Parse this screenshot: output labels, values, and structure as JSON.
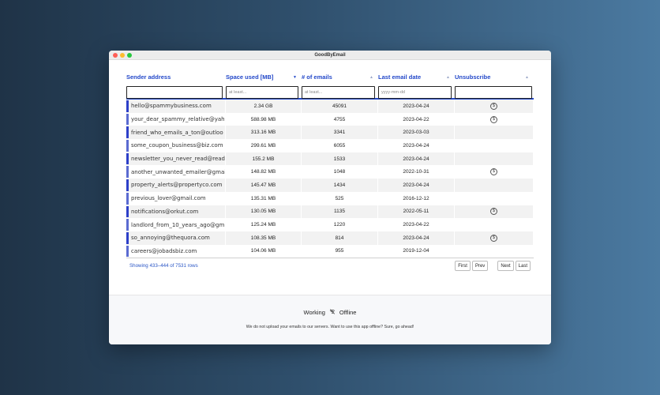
{
  "window": {
    "title": "GoodByEmail"
  },
  "columns": {
    "sender": "Sender address",
    "space": "Space used [MB]",
    "count": "# of emails",
    "date": "Last email date",
    "unsub": "Unsubscribe"
  },
  "sort": {
    "sender": "",
    "space": "▼",
    "count": "▲",
    "date": "▲",
    "unsub": "▲"
  },
  "filters": {
    "space_placeholder": "at least...",
    "count_placeholder": "at least...",
    "date_placeholder": "yyyy-mm-dd"
  },
  "rows": [
    {
      "sender": "hello@spammybusiness.com",
      "space": "2.34 GB",
      "count": "45091",
      "date": "2023-04-24",
      "unsub": true,
      "bar": "#2d3fc9"
    },
    {
      "sender": "your_dear_spammy_relative@yah",
      "space": "588.98 MB",
      "count": "4755",
      "date": "2023-04-22",
      "unsub": true,
      "bar": "#5a6bd1"
    },
    {
      "sender": "friend_who_emails_a_ton@outloo",
      "space": "313.16 MB",
      "count": "3341",
      "date": "2023-03-03",
      "unsub": false,
      "bar": "#2d3fc9"
    },
    {
      "sender": "some_coupon_business@biz.com",
      "space": "299.61 MB",
      "count": "6055",
      "date": "2023-04-24",
      "unsub": false,
      "bar": "#5a6bd1"
    },
    {
      "sender": "newsletter_you_never_read@read",
      "space": "155.2 MB",
      "count": "1533",
      "date": "2023-04-24",
      "unsub": false,
      "bar": "#2d3fc9"
    },
    {
      "sender": "another_unwanted_emailer@gmai",
      "space": "148.82 MB",
      "count": "1048",
      "date": "2022-10-31",
      "unsub": true,
      "bar": "#5a6bd1"
    },
    {
      "sender": "property_alerts@propertyco.com",
      "space": "145.47 MB",
      "count": "1434",
      "date": "2023-04-24",
      "unsub": false,
      "bar": "#2d3fc9"
    },
    {
      "sender": "previous_lover@gmail.com",
      "space": "135.31 MB",
      "count": "525",
      "date": "2016-12-12",
      "unsub": false,
      "bar": "#5a6bd1"
    },
    {
      "sender": "notifications@orkut.com",
      "space": "130.05 MB",
      "count": "1135",
      "date": "2022-05-11",
      "unsub": true,
      "bar": "#2d3fc9"
    },
    {
      "sender": "landlord_from_10_years_ago@gm",
      "space": "125.24 MB",
      "count": "1220",
      "date": "2023-04-22",
      "unsub": false,
      "bar": "#5a6bd1"
    },
    {
      "sender": "so_annoying@thequora.com",
      "space": "108.35 MB",
      "count": "814",
      "date": "2023-04-24",
      "unsub": true,
      "bar": "#2d3fc9"
    },
    {
      "sender": "careers@jobadsbiz.com",
      "space": "104.06 MB",
      "count": "955",
      "date": "2019-12-04",
      "unsub": false,
      "bar": "#5a6bd1"
    }
  ],
  "unsub_icon": "$",
  "pager": {
    "showing": "Showing 433–444 of 7531 rows",
    "first": "First",
    "prev": "Prev",
    "next": "Next",
    "last": "Last"
  },
  "footer": {
    "status_left": "Working",
    "status_right": "Offline",
    "status_icon": "⌇",
    "note": "We do not upload your emails to our servers. Want to use this app offline? Sure, go ahead!"
  },
  "colors": {
    "accent": "#2348c9",
    "bar_dark": "#2d3fc9",
    "bar_light": "#5a6bd1"
  }
}
